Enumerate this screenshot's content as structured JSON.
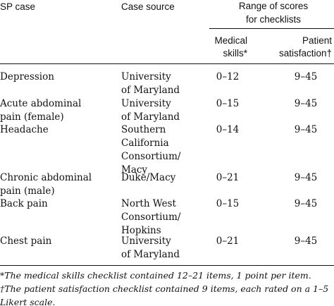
{
  "header": {
    "sp_case": "SP case",
    "case_source": "Case source",
    "group": [
      "Range of scores",
      "for checklists"
    ],
    "medical": [
      "Medical",
      "skills*"
    ],
    "patient": [
      "Patient",
      "satisfaction†"
    ]
  },
  "rows": [
    {
      "sp_case": [
        "Depression"
      ],
      "source": [
        "University",
        "of Maryland"
      ],
      "medical": "0–12",
      "patient": "9–45"
    },
    {
      "sp_case": [
        "Acute abdominal",
        "pain (female)"
      ],
      "source": [
        "University",
        "of Maryland"
      ],
      "medical": "0–15",
      "patient": "9–45"
    },
    {
      "sp_case": [
        "Headache"
      ],
      "source": [
        "Southern",
        "California",
        "Consortium/",
        "Macy"
      ],
      "medical": "0–14",
      "patient": "9–45"
    },
    {
      "sp_case": [
        "Chronic abdominal",
        "pain (male)"
      ],
      "source": [
        "Duke/Macy"
      ],
      "medical": "0–21",
      "patient": "9–45"
    },
    {
      "sp_case": [
        "Back pain"
      ],
      "source": [
        "North West",
        "Consortium/",
        "Hopkins"
      ],
      "medical": "0–15",
      "patient": "9–45"
    },
    {
      "sp_case": [
        "Chest pain"
      ],
      "source": [
        "University",
        "of Maryland"
      ],
      "medical": "0–21",
      "patient": "9–45"
    }
  ],
  "footnotes": [
    "*The medical skills checklist contained 12–21 items, 1 point per item.",
    "†The patient satisfaction checklist contained 9 items, each rated on a 1–5",
    "Likert scale."
  ]
}
